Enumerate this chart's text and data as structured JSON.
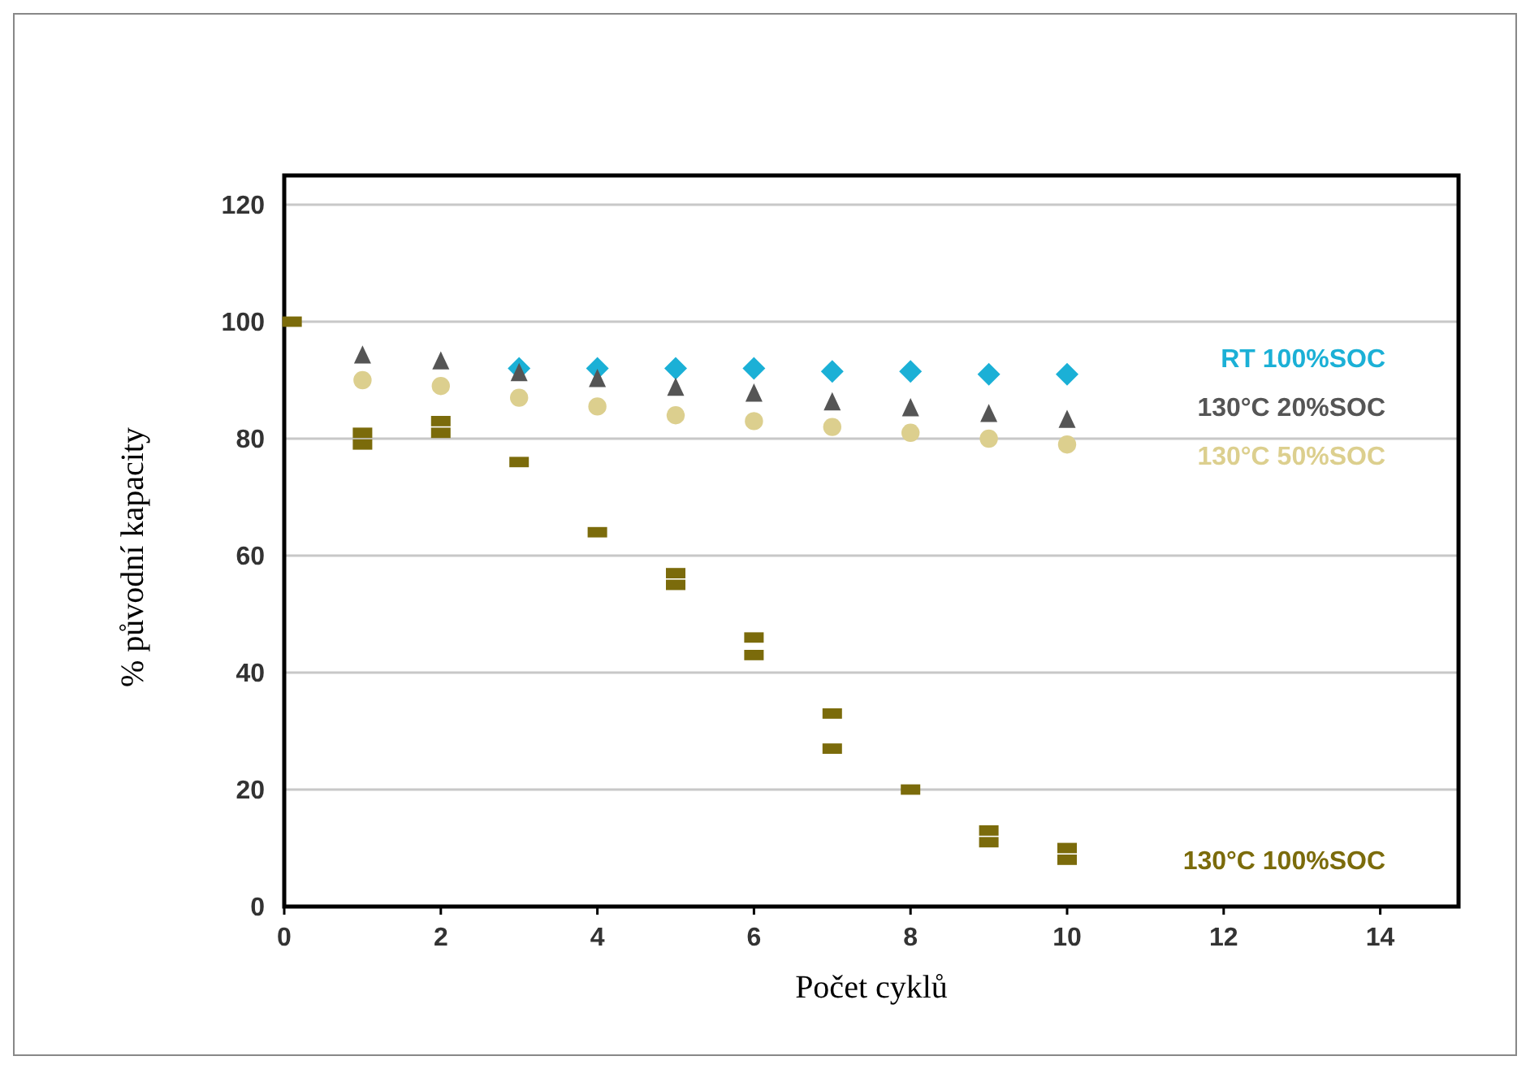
{
  "chart_data": {
    "type": "scatter",
    "xlabel": "Počet cyklů",
    "ylabel": "% původní kapacity",
    "xlim": [
      0,
      15
    ],
    "ylim": [
      0,
      125
    ],
    "xticks": [
      0,
      2,
      4,
      6,
      8,
      10,
      12,
      14
    ],
    "yticks": [
      0,
      20,
      40,
      60,
      80,
      100,
      120
    ],
    "grid": "y",
    "series": [
      {
        "name": "RT 100%SOC",
        "color": "#1bb0d6",
        "marker": "diamond",
        "x": [
          3,
          4,
          5,
          6,
          7,
          8,
          9,
          10
        ],
        "values": [
          92,
          92,
          92,
          92,
          91.5,
          91.5,
          91,
          91
        ]
      },
      {
        "name": "130°C 20%SOC",
        "color": "#555555",
        "marker": "triangle",
        "x": [
          1,
          2,
          3,
          4,
          5,
          6,
          7,
          8,
          9,
          10
        ],
        "values": [
          94,
          93,
          91,
          90,
          88.5,
          87.5,
          86,
          85,
          84,
          83
        ]
      },
      {
        "name": "130°C 50%SOC",
        "color": "#dccf8e",
        "marker": "circle",
        "x": [
          1,
          2,
          3,
          4,
          5,
          6,
          7,
          8,
          9,
          10
        ],
        "values": [
          90,
          89,
          87,
          85.5,
          84,
          83,
          82,
          81,
          80,
          79
        ]
      },
      {
        "name": "130°C 100%SOC",
        "color": "#7b6b0b",
        "marker": "square",
        "x": [
          0.1,
          1,
          1,
          2,
          2,
          3,
          4,
          5,
          5,
          6,
          6,
          7,
          7,
          8,
          9,
          9,
          10,
          10
        ],
        "values": [
          100,
          81,
          79,
          83,
          81,
          76,
          64,
          57,
          55,
          46,
          43,
          33,
          27,
          20,
          13,
          11,
          10,
          8
        ]
      }
    ]
  }
}
